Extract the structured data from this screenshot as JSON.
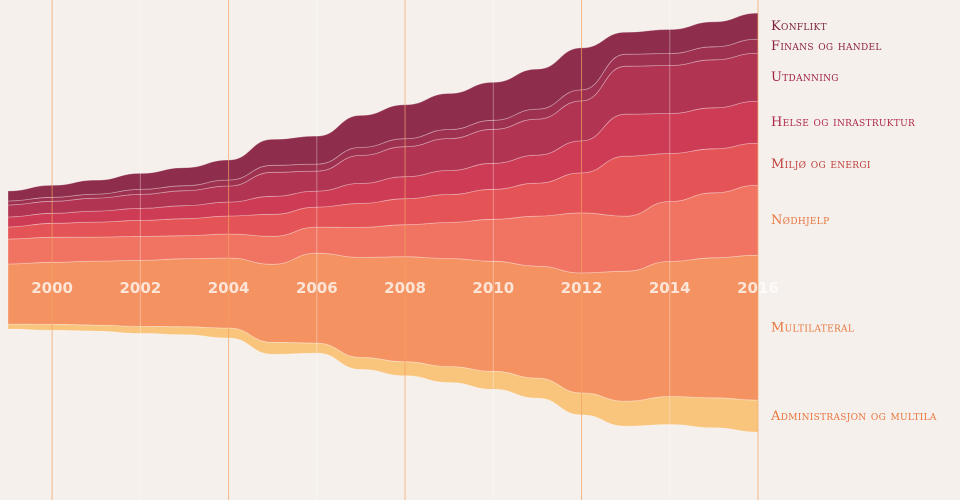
{
  "chart_data": {
    "type": "area",
    "x": [
      1999,
      2000,
      2001,
      2002,
      2003,
      2004,
      2005,
      2006,
      2007,
      2008,
      2009,
      2010,
      2011,
      2012,
      2013,
      2014,
      2015,
      2016
    ],
    "year_labels": [
      "2000",
      "2002",
      "2004",
      "2006",
      "2008",
      "2010",
      "2012",
      "2014",
      "2016"
    ],
    "series": [
      {
        "name": "Administrasjon og multila",
        "color": "#f9c47c",
        "values": [
          5,
          6,
          6,
          7,
          8,
          10,
          12,
          10,
          12,
          14,
          16,
          18,
          20,
          22,
          25,
          28,
          30,
          32
        ]
      },
      {
        "name": "Multilateral",
        "color": "#f49262",
        "values": [
          60,
          62,
          64,
          66,
          68,
          70,
          78,
          90,
          100,
          105,
          108,
          110,
          112,
          120,
          130,
          135,
          140,
          145
        ]
      },
      {
        "name": "Nødhjelp",
        "color": "#f07461",
        "values": [
          25,
          25,
          24,
          24,
          23,
          24,
          28,
          26,
          30,
          32,
          36,
          42,
          50,
          60,
          55,
          60,
          65,
          70
        ]
      },
      {
        "name": "Miljø og energi",
        "color": "#e45456",
        "values": [
          12,
          14,
          15,
          16,
          17,
          18,
          22,
          20,
          24,
          26,
          28,
          30,
          33,
          40,
          60,
          48,
          44,
          42
        ]
      },
      {
        "name": "Helse og inrastruktur",
        "color": "#cd3b54",
        "values": [
          10,
          10,
          11,
          12,
          13,
          14,
          18,
          16,
          20,
          22,
          24,
          26,
          28,
          32,
          42,
          40,
          41,
          42
        ]
      },
      {
        "name": "Utdanning",
        "color": "#b13452",
        "values": [
          12,
          12,
          13,
          14,
          15,
          16,
          24,
          20,
          28,
          30,
          32,
          34,
          36,
          40,
          48,
          48,
          48,
          48
        ]
      },
      {
        "name": "Finans og handel",
        "color": "#9e3050",
        "values": [
          4,
          4,
          4,
          5,
          5,
          6,
          7,
          7,
          8,
          8,
          9,
          9,
          10,
          11,
          12,
          12,
          13,
          14
        ]
      },
      {
        "name": "Konflikt",
        "color": "#8e2d4c",
        "values": [
          10,
          12,
          14,
          16,
          18,
          20,
          26,
          28,
          32,
          34,
          36,
          38,
          40,
          42,
          22,
          24,
          25,
          26
        ]
      }
    ],
    "label_colors": [
      "#e8753f",
      "#e8753f",
      "#e8753f",
      "#c1413f",
      "#b02a48",
      "#a02440",
      "#8e2341",
      "#7a1f38"
    ]
  }
}
